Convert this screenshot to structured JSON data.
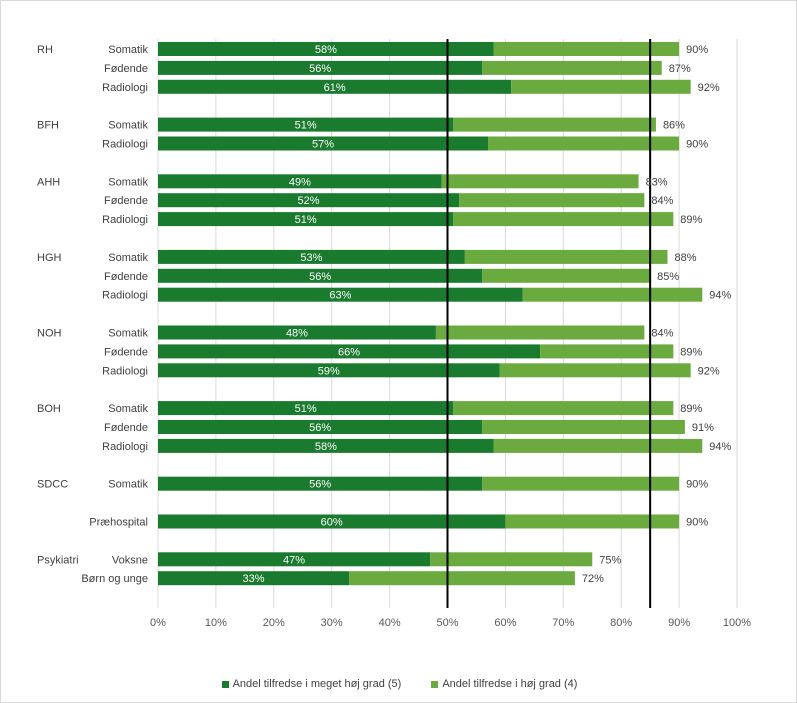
{
  "chart_data": {
    "type": "bar",
    "stacked": true,
    "orientation": "horizontal",
    "groups": [
      {
        "name": "RH",
        "rows": [
          {
            "label": "Somatik",
            "very_high": 58,
            "high": 32,
            "total": 90
          },
          {
            "label": "Fødende",
            "very_high": 56,
            "high": 31,
            "total": 87
          },
          {
            "label": "Radiologi",
            "very_high": 61,
            "high": 31,
            "total": 92
          }
        ]
      },
      {
        "name": "BFH",
        "rows": [
          {
            "label": "Somatik",
            "very_high": 51,
            "high": 35,
            "total": 86
          },
          {
            "label": "Radiologi",
            "very_high": 57,
            "high": 33,
            "total": 90
          }
        ]
      },
      {
        "name": "AHH",
        "rows": [
          {
            "label": "Somatik",
            "very_high": 49,
            "high": 34,
            "total": 83
          },
          {
            "label": "Fødende",
            "very_high": 52,
            "high": 32,
            "total": 84
          },
          {
            "label": "Radiologi",
            "very_high": 51,
            "high": 38,
            "total": 89
          }
        ]
      },
      {
        "name": "HGH",
        "rows": [
          {
            "label": "Somatik",
            "very_high": 53,
            "high": 35,
            "total": 88
          },
          {
            "label": "Fødende",
            "very_high": 56,
            "high": 29,
            "total": 85
          },
          {
            "label": "Radiologi",
            "very_high": 63,
            "high": 31,
            "total": 94
          }
        ]
      },
      {
        "name": "NOH",
        "rows": [
          {
            "label": "Somatik",
            "very_high": 48,
            "high": 36,
            "total": 84
          },
          {
            "label": "Fødende",
            "very_high": 66,
            "high": 23,
            "total": 89
          },
          {
            "label": "Radiologi",
            "very_high": 59,
            "high": 33,
            "total": 92
          }
        ]
      },
      {
        "name": "BOH",
        "rows": [
          {
            "label": "Somatik",
            "very_high": 51,
            "high": 38,
            "total": 89
          },
          {
            "label": "Fødende",
            "very_high": 56,
            "high": 35,
            "total": 91
          },
          {
            "label": "Radiologi",
            "very_high": 58,
            "high": 36,
            "total": 94
          }
        ]
      },
      {
        "name": "SDCC",
        "rows": [
          {
            "label": "Somatik",
            "very_high": 56,
            "high": 34,
            "total": 90
          }
        ]
      },
      {
        "name": "",
        "rows": [
          {
            "label": "Præhospital",
            "very_high": 60,
            "high": 30,
            "total": 90
          }
        ]
      },
      {
        "name": "Psykiatri",
        "rows": [
          {
            "label": "Voksne",
            "very_high": 47,
            "high": 28,
            "total": 75
          },
          {
            "label": "Børn og unge",
            "very_high": 33,
            "high": 39,
            "total": 72
          }
        ]
      }
    ],
    "x_ticks": [
      "0%",
      "10%",
      "20%",
      "30%",
      "40%",
      "50%",
      "60%",
      "70%",
      "80%",
      "90%",
      "100%"
    ],
    "xlim": [
      0,
      100
    ],
    "reference_lines": [
      50,
      85
    ],
    "grid": true,
    "legend_position": "bottom",
    "series": [
      {
        "name": "Andel tilfredse i meget høj grad (5)",
        "key": "very_high",
        "color": "#1a7a2e"
      },
      {
        "name": "Andel tilfredse i høj grad (4)",
        "key": "high",
        "color": "#6aaa3e"
      }
    ]
  }
}
